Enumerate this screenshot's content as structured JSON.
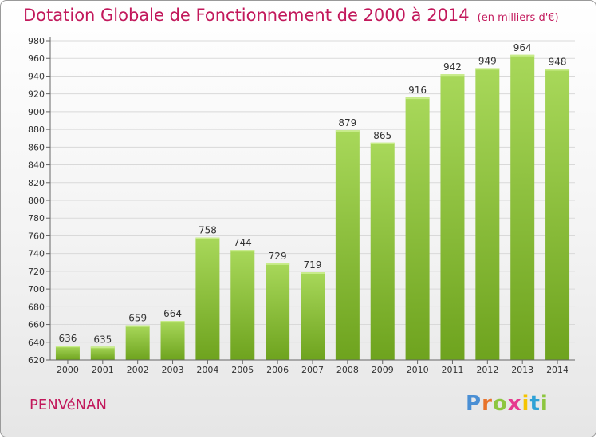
{
  "title": "Dotation Globale de Fonctionnement de 2000 à 2014",
  "unit_note": "(en milliers d'€)",
  "commune": "PENVéNAN",
  "logo": {
    "text": "Proxiti",
    "letter_colors": [
      "#4a8fd4",
      "#e8732a",
      "#8dc63f",
      "#e63a8f",
      "#f5c400",
      "#2fa2d6",
      "#8dc63f"
    ]
  },
  "colors": {
    "title": "#c2185b",
    "bar_light": "#a8d85a",
    "bar_dark": "#6ea31e",
    "grid": "#d9d9d9",
    "axis_text": "#333333"
  },
  "chart_data": {
    "type": "bar",
    "title": "Dotation Globale de Fonctionnement de 2000 à 2014",
    "xlabel": "",
    "ylabel": "",
    "categories": [
      "2000",
      "2001",
      "2002",
      "2003",
      "2004",
      "2005",
      "2006",
      "2007",
      "2008",
      "2009",
      "2010",
      "2011",
      "2012",
      "2013",
      "2014"
    ],
    "values": [
      636,
      635,
      659,
      664,
      758,
      744,
      729,
      719,
      879,
      865,
      916,
      942,
      949,
      964,
      948
    ],
    "ylim": [
      620,
      980
    ],
    "yticks": [
      620,
      640,
      660,
      680,
      700,
      720,
      740,
      760,
      780,
      800,
      820,
      840,
      860,
      880,
      900,
      920,
      940,
      960,
      980
    ],
    "grid": true,
    "legend": "none"
  }
}
